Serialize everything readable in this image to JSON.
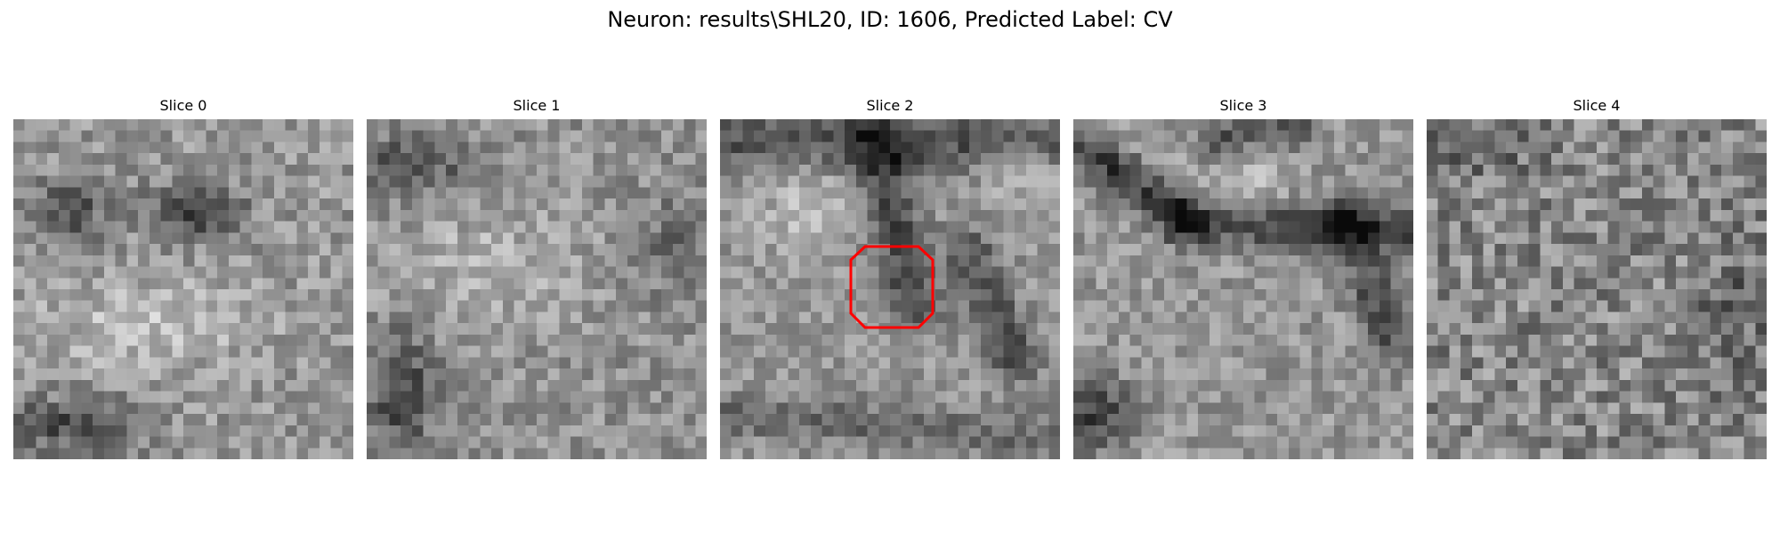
{
  "figure": {
    "suptitle": "Neuron: results\\SHL20, ID: 1606, Predicted Label: CV",
    "grid_size": 30,
    "colormap": "gray",
    "roi_color": "#ff0000"
  },
  "slices": [
    {
      "title": "Slice 0"
    },
    {
      "title": "Slice 1"
    },
    {
      "title": "Slice 2"
    },
    {
      "title": "Slice 3"
    },
    {
      "title": "Slice 4"
    }
  ]
}
